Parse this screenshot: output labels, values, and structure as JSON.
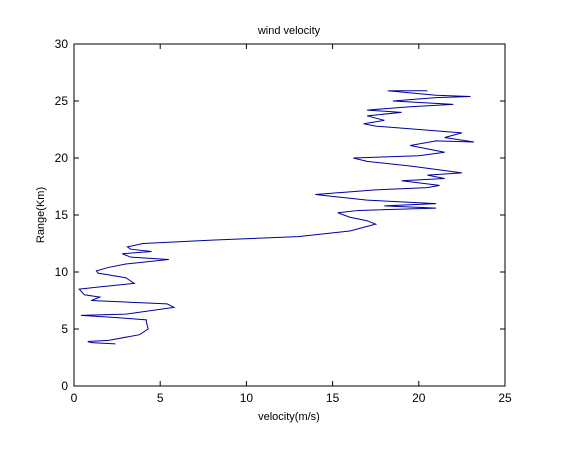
{
  "chart_data": {
    "type": "line",
    "title": "wind velocity",
    "x_label": "velocity(m/s)",
    "y_label": "Range(Km)",
    "series": [
      {
        "color": "#0000a0",
        "x": [
          2.4,
          1.0,
          0.8,
          2.0,
          3.8,
          4.3,
          4.2,
          4.2,
          2.5,
          0.4,
          3.0,
          5.8,
          5.4,
          1.0,
          1.5,
          0.6,
          0.3,
          1.5,
          3.5,
          3.0,
          1.4,
          1.3,
          2.0,
          3.0,
          5.5,
          3.3,
          2.8,
          4.5,
          3.3,
          3.1,
          4.0,
          8.0,
          13.0,
          16.0,
          17.5,
          17.0,
          16.0,
          15.3,
          16.5,
          21.0,
          18.0,
          21.0,
          17.0,
          14.0,
          17.5,
          20.5,
          21.2,
          19.0,
          21.5,
          20.5,
          22.5,
          19.5,
          17.0,
          16.2,
          20.0,
          21.5,
          20.5,
          19.5,
          21.0,
          23.2,
          21.5,
          22.5,
          17.5,
          16.8,
          18.0,
          17.0,
          19.0,
          17.0,
          19.5,
          22.0,
          18.5,
          21.0,
          23.0,
          21.0,
          18.2,
          20.5
        ],
        "values": [
          3.7,
          3.8,
          3.9,
          4.0,
          4.5,
          5.0,
          5.6,
          5.8,
          6.0,
          6.2,
          6.3,
          6.9,
          7.2,
          7.5,
          7.8,
          8.0,
          8.5,
          8.7,
          9.0,
          9.5,
          9.9,
          10.1,
          10.4,
          10.7,
          11.1,
          11.3,
          11.6,
          11.8,
          12.0,
          12.2,
          12.5,
          12.8,
          13.1,
          13.6,
          14.2,
          14.5,
          14.8,
          15.2,
          15.4,
          15.6,
          15.8,
          16.0,
          16.3,
          16.8,
          17.2,
          17.4,
          17.6,
          18.0,
          18.2,
          18.5,
          18.7,
          19.3,
          19.7,
          20.0,
          20.2,
          20.5,
          20.8,
          21.1,
          21.5,
          21.4,
          21.8,
          22.2,
          22.8,
          23.0,
          23.3,
          23.7,
          24.0,
          24.2,
          24.5,
          24.7,
          25.0,
          25.3,
          25.4,
          25.5,
          25.9,
          25.9
        ]
      }
    ],
    "xlim": [
      0,
      25
    ],
    "xticks": [
      0,
      5,
      10,
      15,
      20,
      25
    ],
    "ylim": [
      0,
      30
    ],
    "yticks": [
      0,
      5,
      10,
      15,
      20,
      25,
      30
    ]
  }
}
